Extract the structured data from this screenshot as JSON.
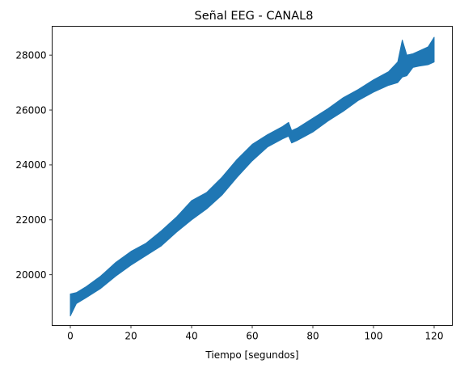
{
  "chart_data": {
    "type": "line",
    "title": "Señal EEG - CANAL8",
    "xlabel": "Tiempo [segundos]",
    "ylabel": "",
    "xlim": [
      -6,
      126
    ],
    "ylim": [
      18150,
      29050
    ],
    "xticks": [
      0,
      20,
      40,
      60,
      80,
      100,
      120
    ],
    "xtick_labels": [
      "0",
      "20",
      "40",
      "60",
      "80",
      "100",
      "120"
    ],
    "yticks": [
      20000,
      22000,
      24000,
      26000,
      28000
    ],
    "ytick_labels": [
      "20000",
      "22000",
      "24000",
      "26000",
      "28000"
    ],
    "grid": false,
    "legend": "none",
    "line_color": "#1f77b4",
    "series": [
      {
        "band": [
          {
            "x": 0,
            "low": 18500,
            "high": 19300
          },
          {
            "x": 2,
            "low": 18950,
            "high": 19350
          },
          {
            "x": 5,
            "low": 19150,
            "high": 19550
          },
          {
            "x": 10,
            "low": 19500,
            "high": 19950
          },
          {
            "x": 15,
            "low": 19950,
            "high": 20450
          },
          {
            "x": 20,
            "low": 20350,
            "high": 20850
          },
          {
            "x": 25,
            "low": 20700,
            "high": 21150
          },
          {
            "x": 30,
            "low": 21050,
            "high": 21600
          },
          {
            "x": 35,
            "low": 21550,
            "high": 22100
          },
          {
            "x": 40,
            "low": 22000,
            "high": 22700
          },
          {
            "x": 45,
            "low": 22400,
            "high": 23000
          },
          {
            "x": 50,
            "low": 22900,
            "high": 23550
          },
          {
            "x": 55,
            "low": 23550,
            "high": 24200
          },
          {
            "x": 60,
            "low": 24150,
            "high": 24750
          },
          {
            "x": 65,
            "low": 24650,
            "high": 25100
          },
          {
            "x": 70,
            "low": 24950,
            "high": 25400
          },
          {
            "x": 72,
            "low": 25050,
            "high": 25550
          },
          {
            "x": 73,
            "low": 24800,
            "high": 25250
          },
          {
            "x": 75,
            "low": 24900,
            "high": 25350
          },
          {
            "x": 80,
            "low": 25200,
            "high": 25700
          },
          {
            "x": 85,
            "low": 25600,
            "high": 26050
          },
          {
            "x": 90,
            "low": 25950,
            "high": 26450
          },
          {
            "x": 95,
            "low": 26350,
            "high": 26750
          },
          {
            "x": 100,
            "low": 26650,
            "high": 27100
          },
          {
            "x": 105,
            "low": 26900,
            "high": 27400
          },
          {
            "x": 108,
            "low": 27000,
            "high": 27750
          },
          {
            "x": 109.5,
            "low": 27200,
            "high": 28550
          },
          {
            "x": 111,
            "low": 27250,
            "high": 28000
          },
          {
            "x": 113,
            "low": 27550,
            "high": 28050
          },
          {
            "x": 115,
            "low": 27600,
            "high": 28150
          },
          {
            "x": 118,
            "low": 27650,
            "high": 28300
          },
          {
            "x": 120,
            "low": 27750,
            "high": 28650
          }
        ]
      }
    ]
  }
}
